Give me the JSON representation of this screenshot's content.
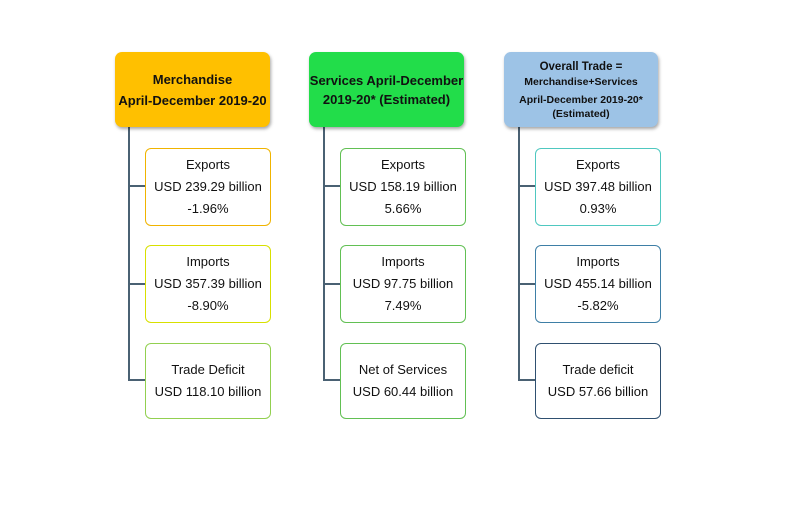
{
  "columns": [
    {
      "header": [
        "Merchandise",
        "April-December 2019-20"
      ],
      "header_color": "#ffc000",
      "box_border": [
        "#f0b400",
        "#d8e000",
        "#92d050"
      ],
      "boxes": [
        [
          "Exports",
          "USD  239.29 billion",
          "-1.96%"
        ],
        [
          "Imports",
          "USD 357.39 billion",
          "-8.90%"
        ],
        [
          "Trade Deficit",
          "USD 118.10 billion"
        ]
      ]
    },
    {
      "header": [
        "Services April-December",
        "2019-20* (Estimated)"
      ],
      "header_color": "#22dd4a",
      "box_border": [
        "#62c054",
        "#62c054",
        "#62c054"
      ],
      "boxes": [
        [
          "Exports",
          "USD  158.19 billion",
          "5.66%"
        ],
        [
          "Imports",
          "USD 97.75 billion",
          "7.49%"
        ],
        [
          "Net of Services",
          "USD 60.44 billion"
        ]
      ]
    },
    {
      "header": [
        "Overall Trade =",
        "Merchandise+Services",
        "April-December 2019-20*",
        "(Estimated)"
      ],
      "header_color": "#9dc3e6",
      "box_border": [
        "#4fc8c0",
        "#3e7fa6",
        "#2f5070"
      ],
      "boxes": [
        [
          "Exports",
          "USD 397.48 billion",
          "0.93%"
        ],
        [
          "Imports",
          "USD 455.14 billion",
          "-5.82%"
        ],
        [
          "Trade deficit",
          "USD  57.66 billion"
        ]
      ]
    }
  ]
}
